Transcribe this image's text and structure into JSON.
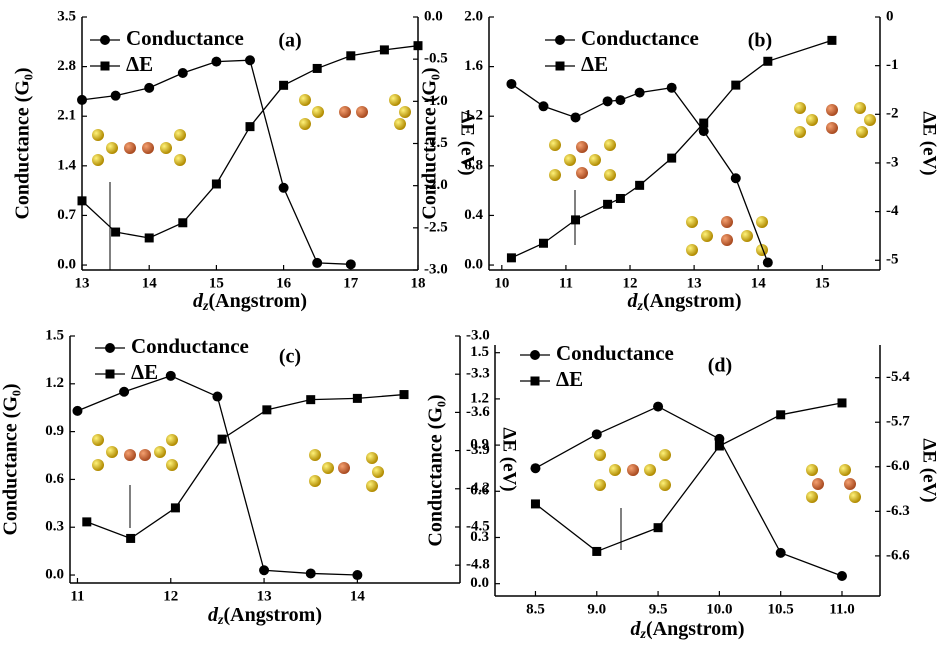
{
  "chart_data": [
    {
      "type": "line",
      "annotation": "(a)",
      "x_label_var": "d",
      "x_label_sub": "z",
      "x_label": "(Angstrom)",
      "y_label": "Conductance (G₀)",
      "y2_label": "ΔE (eV)",
      "xlim": [
        13,
        18
      ],
      "xticks": [
        13,
        14,
        15,
        16,
        17,
        18
      ],
      "ylim": [
        -0.07,
        3.5
      ],
      "yticks": [
        {
          "value": 0,
          "label": "0.0"
        },
        0.7,
        1.4,
        2.1,
        2.8,
        3.5
      ],
      "y2lim": [
        -3.0,
        0.0
      ],
      "y2ticks": [
        {
          "value": -3,
          "label": "-3.0"
        },
        -2.5,
        {
          "value": -2,
          "label": "-2.0"
        },
        -1.5,
        {
          "value": -1,
          "label": "-1.0"
        },
        -0.5,
        {
          "value": 0,
          "label": "0.0"
        }
      ],
      "series": [
        {
          "name": "Conductance",
          "marker": "circle",
          "color": "#000000",
          "x": [
            13,
            13.5,
            14,
            14.5,
            15,
            15.5,
            16,
            16.5,
            17
          ],
          "values": [
            2.33,
            2.39,
            2.5,
            2.71,
            2.87,
            2.89,
            1.09,
            0.03,
            0.01
          ]
        },
        {
          "name": "ΔE",
          "marker": "square",
          "color": "#000000",
          "axis": "y2",
          "x": [
            13,
            13.5,
            14,
            14.5,
            15,
            15.5,
            16,
            16.5,
            17,
            17.5,
            18
          ],
          "values": [
            -2.18,
            -2.55,
            -2.62,
            -2.44,
            -1.98,
            -1.3,
            -0.81,
            -0.61,
            -0.46,
            -0.39,
            -0.34
          ]
        }
      ]
    },
    {
      "type": "line",
      "annotation": "(b)",
      "x_label_var": "d",
      "x_label_sub": "z",
      "x_label": "(Angstrom)",
      "y_label": "Conductance (G₀)",
      "y2_label": "ΔE (eV)",
      "xlim": [
        9.8,
        15.9
      ],
      "xticks": [
        10,
        11,
        12,
        13,
        14,
        15
      ],
      "ylim": [
        -0.04,
        2.0
      ],
      "yticks": [
        {
          "value": 0,
          "label": "0.0"
        },
        0.4,
        0.8,
        1.2,
        1.6,
        {
          "value": 2,
          "label": "2.0"
        }
      ],
      "y2lim": [
        -5.2,
        0
      ],
      "y2ticks": [
        -5,
        -4,
        -3,
        -2,
        -1,
        0
      ],
      "series": [
        {
          "name": "Conductance",
          "marker": "circle",
          "color": "#000000",
          "x": [
            10.15,
            10.65,
            11.15,
            11.65,
            11.85,
            12.15,
            12.65,
            13.15,
            13.65,
            14.15
          ],
          "values": [
            1.46,
            1.28,
            1.19,
            1.32,
            1.33,
            1.39,
            1.43,
            1.08,
            0.7,
            0.02
          ]
        },
        {
          "name": "ΔE",
          "marker": "square",
          "color": "#000000",
          "axis": "y2",
          "x": [
            10.15,
            10.65,
            11.15,
            11.65,
            11.85,
            12.15,
            12.65,
            13.15,
            13.65,
            14.15,
            15.15
          ],
          "values": [
            -4.95,
            -4.65,
            -4.17,
            -3.85,
            -3.73,
            -3.46,
            -2.9,
            -2.18,
            -1.4,
            -0.91,
            -0.48
          ]
        }
      ]
    },
    {
      "type": "line",
      "annotation": "(c)",
      "x_label_var": "d",
      "x_label_sub": "z",
      "x_label": "(Angstrom)",
      "y_label": "Conductance (G₀)",
      "y2_label": "ΔE (eV)",
      "xlim": [
        10.92,
        15.1
      ],
      "xticks": [
        11,
        12,
        13,
        14
      ],
      "ylim": [
        -0.05,
        1.5
      ],
      "yticks": [
        {
          "value": 0,
          "label": "0.0"
        },
        0.3,
        0.6,
        0.9,
        1.2,
        1.5
      ],
      "y2lim": [
        -4.94,
        -3.0
      ],
      "y2ticks": [
        -4.8,
        -4.5,
        -4.2,
        -3.9,
        -3.6,
        -3.3,
        {
          "value": -3,
          "label": "-3.0"
        }
      ],
      "series": [
        {
          "name": "Conductance",
          "marker": "circle",
          "color": "#000000",
          "x": [
            11,
            11.5,
            12,
            12.5,
            13,
            13.5,
            14
          ],
          "values": [
            1.03,
            1.15,
            1.25,
            1.12,
            0.03,
            0.01,
            0.0
          ]
        },
        {
          "name": "ΔE",
          "marker": "square",
          "color": "#000000",
          "axis": "y2",
          "x": [
            11.1,
            11.57,
            12.05,
            12.55,
            13.03,
            13.5,
            14.0,
            14.5
          ],
          "values": [
            -4.46,
            -4.59,
            -4.35,
            -3.81,
            -3.58,
            -3.5,
            -3.49,
            -3.46
          ]
        }
      ]
    },
    {
      "type": "line",
      "annotation": "(d)",
      "x_label_var": "d",
      "x_label_sub": "z",
      "x_label": "(Angstrom)",
      "y_label": "Conductance (G₀)",
      "y2_label": "ΔE (eV)",
      "xlim": [
        8.17,
        11.31
      ],
      "xticks": [
        8.5,
        {
          "value": 9,
          "label": "9.0"
        },
        9.5,
        {
          "value": 10,
          "label": "10.0"
        },
        10.5,
        {
          "value": 11,
          "label": "11.0"
        }
      ],
      "ylim": [
        -0.08,
        1.55
      ],
      "yticks": [
        {
          "value": 0,
          "label": "0.0"
        },
        0.3,
        0.6,
        0.9,
        1.2,
        1.5
      ],
      "y2lim": [
        -6.87,
        -5.18
      ],
      "y2ticks": [
        -6.6,
        -6.3,
        {
          "value": -6,
          "label": "-6.0"
        },
        -5.7,
        -5.4
      ],
      "series": [
        {
          "name": "Conductance",
          "marker": "circle",
          "color": "#000000",
          "x": [
            8.5,
            9.0,
            9.5,
            10.0,
            10.5,
            11.0
          ],
          "values": [
            0.75,
            0.97,
            1.15,
            0.94,
            0.2,
            0.05
          ]
        },
        {
          "name": "ΔE",
          "marker": "square",
          "color": "#000000",
          "axis": "y2",
          "x": [
            8.5,
            9.0,
            9.5,
            10.0,
            10.5,
            11.0
          ],
          "values": [
            -6.25,
            -6.57,
            -6.41,
            -5.86,
            -5.65,
            -5.57
          ]
        }
      ]
    }
  ]
}
